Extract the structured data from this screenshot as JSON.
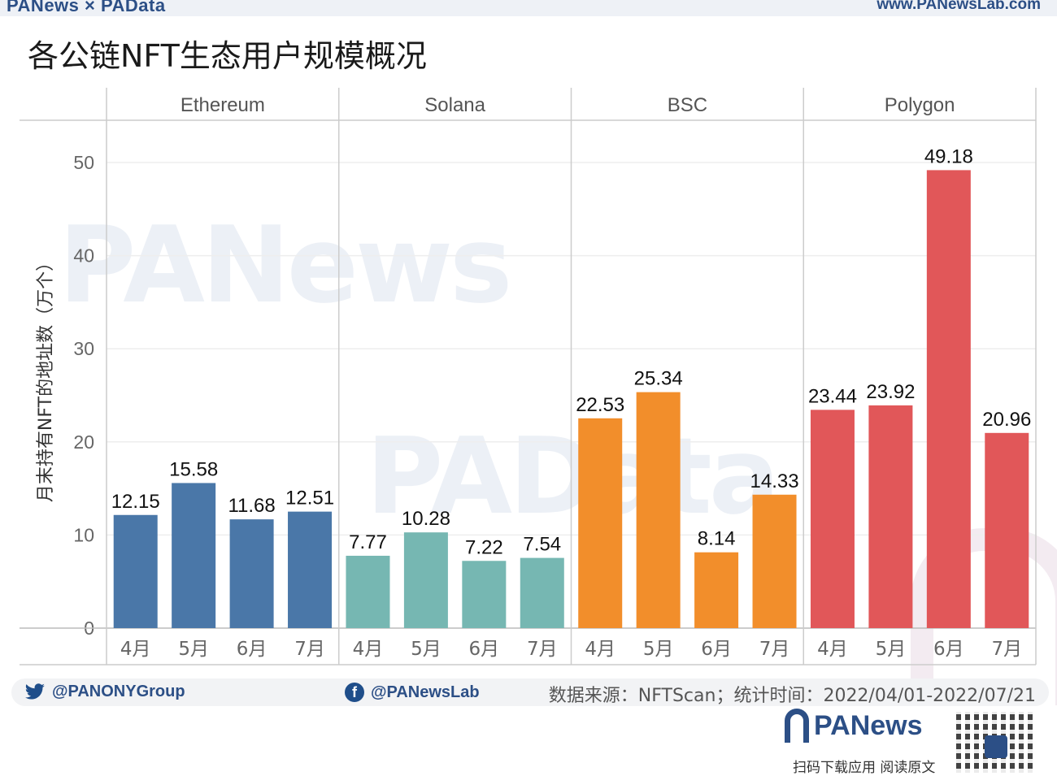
{
  "header": {
    "logo_text": "PANews × PAData",
    "url": "www.PANewsLab.com",
    "title": "各公链NFT生态用户规模概况"
  },
  "watermarks": [
    "PANews",
    "PAData"
  ],
  "chart_data": {
    "type": "bar",
    "ylabel": "月末持有NFT的地址数（万个）",
    "xlabel": "",
    "ylim": [
      0,
      55
    ],
    "yticks": [
      0,
      10,
      20,
      30,
      40,
      50
    ],
    "grid": true,
    "panels": [
      {
        "name": "Ethereum",
        "color": "#4a77a8",
        "categories": [
          "4月",
          "5月",
          "6月",
          "7月"
        ],
        "values": [
          12.15,
          15.58,
          11.68,
          12.51
        ],
        "labels": [
          "12.15",
          "15.58",
          "11.68",
          "12.51"
        ]
      },
      {
        "name": "Solana",
        "color": "#76b7b2",
        "categories": [
          "4月",
          "5月",
          "6月",
          "7月"
        ],
        "values": [
          7.77,
          10.28,
          7.22,
          7.54
        ],
        "labels": [
          "7.77",
          "10.28",
          "7.22",
          "7.54"
        ]
      },
      {
        "name": "BSC",
        "color": "#f28e2b",
        "categories": [
          "4月",
          "5月",
          "6月",
          "7月"
        ],
        "values": [
          22.53,
          25.34,
          8.14,
          14.33
        ],
        "labels": [
          "22.53",
          "25.34",
          "8.14",
          "14.33"
        ]
      },
      {
        "name": "Polygon",
        "color": "#e15759",
        "categories": [
          "4月",
          "5月",
          "6月",
          "7月"
        ],
        "values": [
          23.44,
          23.92,
          49.18,
          20.96
        ],
        "labels": [
          "23.44",
          "23.92",
          "49.18",
          "20.96"
        ]
      }
    ]
  },
  "footer": {
    "twitter": "@PANONYGroup",
    "facebook": "@PANewsLab",
    "source": "数据来源：NFTScan；统计时间：2022/04/01-2022/07/21",
    "brand": "PANews",
    "download": "扫码下载应用  阅读原文"
  },
  "icons": {
    "twitter": "twitter-icon",
    "facebook": "facebook-icon",
    "brand": "panews-logo-icon",
    "qr": "qr-code-icon"
  }
}
